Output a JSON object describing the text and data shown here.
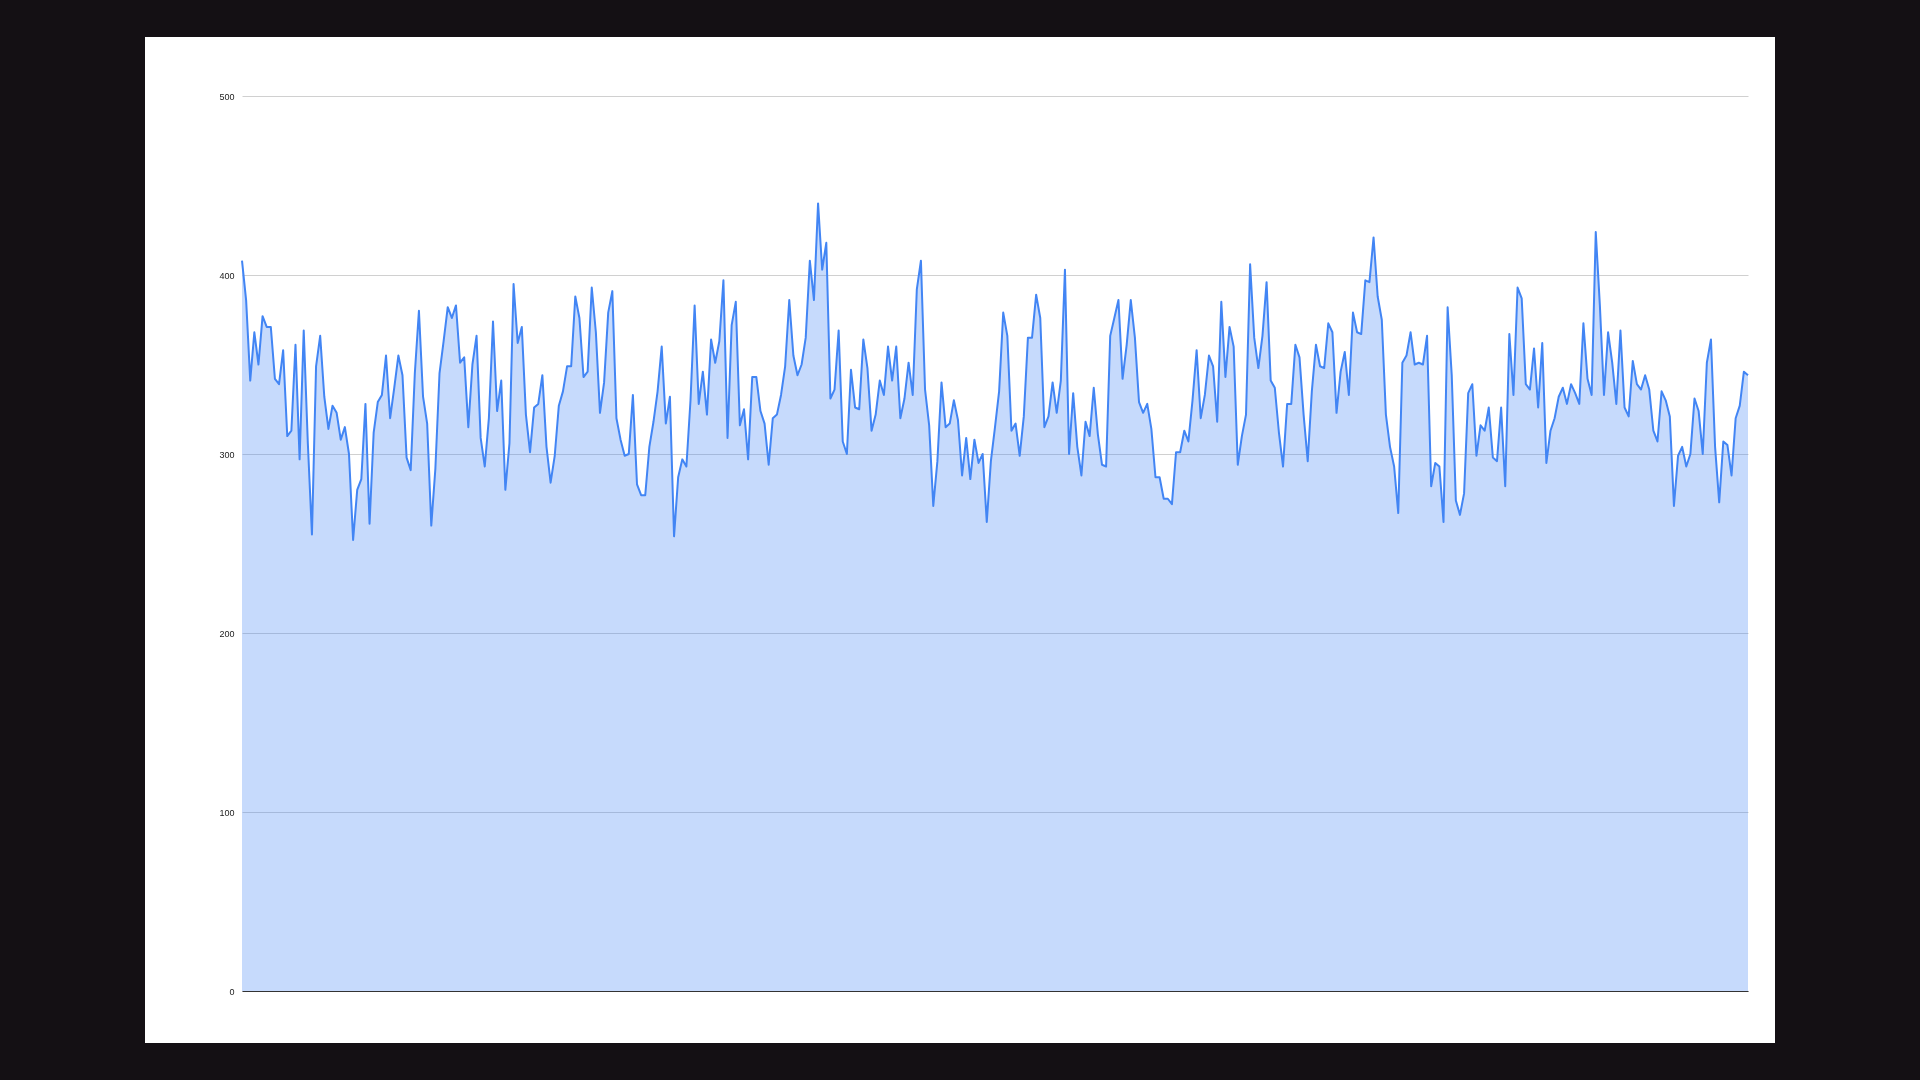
{
  "chart_data": {
    "type": "area",
    "color": "#4285f4",
    "ylim": [
      0,
      500
    ],
    "yticks": [
      0,
      100,
      200,
      300,
      400,
      500
    ],
    "grid": "y",
    "tick_labels": "y",
    "values": [
      408,
      386,
      341,
      368,
      350,
      377,
      371,
      371,
      342,
      339,
      358,
      310,
      313,
      361,
      297,
      369,
      306,
      255,
      349,
      366,
      332,
      314,
      327,
      323,
      308,
      315,
      300,
      252,
      280,
      286,
      328,
      261,
      312,
      329,
      333,
      355,
      320,
      337,
      355,
      344,
      298,
      291,
      345,
      380,
      332,
      317,
      260,
      292,
      345,
      363,
      382,
      376,
      383,
      351,
      354,
      315,
      350,
      366,
      309,
      293,
      320,
      374,
      324,
      341,
      280,
      306,
      395,
      362,
      371,
      322,
      301,
      326,
      328,
      344,
      304,
      284,
      299,
      327,
      335,
      349,
      349,
      388,
      376,
      343,
      346,
      393,
      368,
      323,
      340,
      379,
      391,
      320,
      308,
      299,
      300,
      333,
      283,
      277,
      277,
      304,
      318,
      335,
      360,
      317,
      332,
      254,
      287,
      297,
      293,
      330,
      383,
      328,
      346,
      322,
      364,
      351,
      363,
      397,
      309,
      372,
      385,
      316,
      325,
      297,
      343,
      343,
      324,
      317,
      294,
      320,
      322,
      333,
      349,
      386,
      355,
      344,
      350,
      365,
      408,
      386,
      440,
      403,
      418,
      331,
      336,
      369,
      307,
      300,
      347,
      326,
      325,
      364,
      348,
      313,
      322,
      341,
      333,
      360,
      341,
      360,
      320,
      331,
      351,
      333,
      392,
      408,
      336,
      316,
      271,
      296,
      340,
      315,
      317,
      330,
      319,
      288,
      309,
      286,
      308,
      295,
      300,
      262,
      296,
      315,
      335,
      379,
      366,
      313,
      317,
      299,
      321,
      365,
      365,
      389,
      376,
      315,
      321,
      340,
      323,
      341,
      403,
      300,
      334,
      304,
      288,
      318,
      310,
      337,
      311,
      294,
      293,
      366,
      376,
      386,
      342,
      361,
      386,
      365,
      329,
      323,
      328,
      314,
      287,
      287,
      275,
      275,
      272,
      301,
      301,
      313,
      307,
      330,
      358,
      320,
      333,
      355,
      349,
      318,
      385,
      343,
      371,
      360,
      294,
      310,
      322,
      406,
      365,
      348,
      366,
      396,
      341,
      337,
      312,
      293,
      328,
      328,
      361,
      354,
      322,
      296,
      335,
      361,
      349,
      348,
      373,
      368,
      323,
      346,
      357,
      333,
      379,
      368,
      367,
      397,
      396,
      421,
      388,
      375,
      322,
      304,
      293,
      267,
      351,
      355,
      368,
      350,
      351,
      350,
      366,
      282,
      295,
      293,
      262,
      382,
      344,
      274,
      266,
      278,
      334,
      339,
      299,
      316,
      313,
      326,
      298,
      296,
      326,
      282,
      367,
      333,
      393,
      387,
      339,
      336,
      359,
      326,
      362,
      295,
      313,
      320,
      332,
      337,
      328,
      339,
      334,
      328,
      373,
      342,
      333,
      424,
      383,
      333,
      368,
      351,
      328,
      369,
      326,
      321,
      352,
      339,
      336,
      344,
      336,
      313,
      307,
      335,
      330,
      321,
      271,
      299,
      304,
      293,
      300,
      331,
      324,
      300,
      351,
      364,
      304,
      273,
      307,
      305,
      288,
      320,
      327,
      346,
      344
    ],
    "categories": [
      null,
      null,
      null,
      null,
      null,
      null,
      null,
      null,
      null,
      null,
      null,
      null,
      null,
      null,
      null,
      null,
      null,
      null,
      null,
      null,
      null,
      null,
      null,
      null,
      null,
      null,
      null,
      null,
      null,
      null,
      null,
      null,
      null,
      null,
      null,
      null,
      null,
      null,
      null,
      null,
      null,
      null,
      null,
      null,
      null,
      null,
      null,
      null,
      null,
      null,
      null,
      null,
      null,
      null,
      null,
      null,
      null,
      null,
      null,
      null,
      null,
      null,
      null,
      null,
      null,
      null,
      null,
      null,
      null,
      null,
      null,
      null,
      null,
      null,
      null,
      null,
      null,
      null,
      null,
      null,
      null,
      null,
      null,
      null,
      null,
      null,
      null,
      null,
      null,
      null,
      null,
      null,
      null,
      null,
      null,
      null,
      null,
      null,
      null,
      null,
      null,
      null,
      null,
      null,
      null,
      null,
      null,
      null,
      null,
      null,
      null,
      null,
      null,
      null,
      null,
      null,
      null,
      null,
      null,
      null,
      null,
      null,
      null,
      null,
      null,
      null,
      null,
      null,
      null,
      null,
      null,
      null,
      null,
      null,
      null,
      null,
      null,
      null,
      null,
      null,
      null,
      null,
      null,
      null,
      null,
      null,
      null,
      null,
      null,
      null,
      null,
      null,
      null,
      null,
      null,
      null,
      null,
      null,
      null,
      null,
      null,
      null,
      null,
      null,
      null,
      null,
      null,
      null,
      null,
      null,
      null,
      null,
      null,
      null,
      null,
      null,
      null,
      null,
      null,
      null,
      null,
      null,
      null,
      null,
      null,
      null,
      null,
      null,
      null,
      null,
      null,
      null,
      null,
      null,
      null,
      null,
      null,
      null,
      null,
      null,
      null,
      null,
      null,
      null,
      null,
      null,
      null,
      null,
      null,
      null,
      null,
      null,
      null,
      null,
      null,
      null,
      null,
      null,
      null,
      null,
      null,
      null,
      null,
      null,
      null,
      null,
      null,
      null,
      null,
      null,
      null,
      null,
      null,
      null,
      null,
      null,
      null,
      null,
      null,
      null,
      null,
      null,
      null,
      null,
      null,
      null,
      null,
      null,
      null,
      null,
      null,
      null,
      null,
      null,
      null,
      null,
      null,
      null,
      null,
      null,
      null,
      null,
      null,
      null,
      null,
      null,
      null,
      null,
      null,
      null,
      null,
      null,
      null,
      null,
      null,
      null,
      null,
      null,
      null,
      null,
      null,
      null,
      null,
      null,
      null,
      null,
      null,
      null,
      null,
      null,
      null,
      null,
      null,
      null,
      null,
      null,
      null,
      null,
      null,
      null,
      null,
      null,
      null,
      null,
      null,
      null,
      null,
      null,
      null,
      null,
      null,
      null,
      null,
      null,
      null,
      null,
      null,
      null,
      null,
      null,
      null,
      null,
      null,
      null,
      null,
      null,
      null,
      null,
      null,
      null,
      null,
      null,
      null,
      null,
      null,
      null,
      null,
      null,
      null,
      null,
      null,
      null,
      null,
      null,
      null,
      null,
      null,
      null,
      null,
      null,
      null,
      null,
      null,
      null,
      null,
      null,
      null,
      null,
      null,
      null,
      null,
      null,
      null,
      null,
      null,
      null,
      null
    ]
  }
}
